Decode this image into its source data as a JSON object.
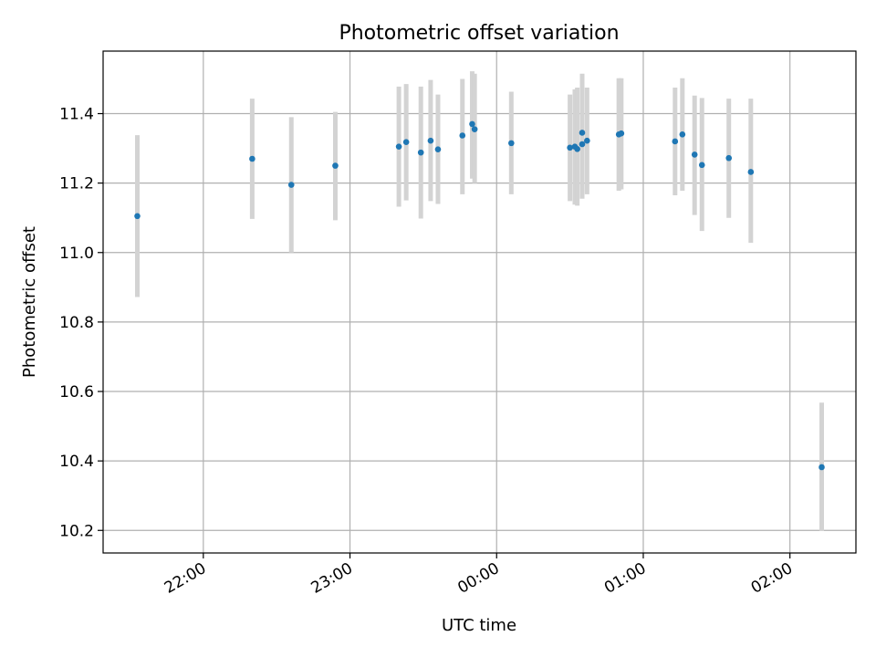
{
  "chart_data": {
    "type": "scatter",
    "title": "Photometric offset variation",
    "xlabel": "UTC time",
    "ylabel": "Photometric offset",
    "x_is_time": true,
    "xlim": [
      "21:19",
      "02:27"
    ],
    "ylim": [
      10.135,
      11.58
    ],
    "xticks": [
      "22:00",
      "23:00",
      "00:00",
      "01:00",
      "02:00"
    ],
    "yticks": [
      "10.2",
      "10.4",
      "10.6",
      "10.8",
      "11.0",
      "11.2",
      "11.4"
    ],
    "grid": true,
    "marker_color": "#1f77b4",
    "errorbar_color": "#d3d3d3",
    "points": [
      {
        "x": "21:33",
        "y": 11.105,
        "ylow": 10.872,
        "yhigh": 11.338
      },
      {
        "x": "22:20",
        "y": 11.27,
        "ylow": 11.097,
        "yhigh": 11.443
      },
      {
        "x": "22:36",
        "y": 11.195,
        "ylow": 11.0,
        "yhigh": 11.39
      },
      {
        "x": "22:54",
        "y": 11.25,
        "ylow": 11.093,
        "yhigh": 11.405
      },
      {
        "x": "23:20",
        "y": 11.305,
        "ylow": 11.132,
        "yhigh": 11.478
      },
      {
        "x": "23:23",
        "y": 11.318,
        "ylow": 11.15,
        "yhigh": 11.485
      },
      {
        "x": "23:29",
        "y": 11.288,
        "ylow": 11.098,
        "yhigh": 11.478
      },
      {
        "x": "23:33",
        "y": 11.322,
        "ylow": 11.148,
        "yhigh": 11.497
      },
      {
        "x": "23:36",
        "y": 11.297,
        "ylow": 11.14,
        "yhigh": 11.455
      },
      {
        "x": "23:46",
        "y": 11.337,
        "ylow": 11.168,
        "yhigh": 11.5
      },
      {
        "x": "23:50",
        "y": 11.37,
        "ylow": 11.213,
        "yhigh": 11.522
      },
      {
        "x": "23:51",
        "y": 11.355,
        "ylow": 11.2,
        "yhigh": 11.515
      },
      {
        "x": "00:06",
        "y": 11.315,
        "ylow": 11.168,
        "yhigh": 11.463
      },
      {
        "x": "00:30",
        "y": 11.302,
        "ylow": 11.148,
        "yhigh": 11.455
      },
      {
        "x": "00:32",
        "y": 11.305,
        "ylow": 11.138,
        "yhigh": 11.47
      },
      {
        "x": "00:33",
        "y": 11.298,
        "ylow": 11.135,
        "yhigh": 11.475
      },
      {
        "x": "00:35",
        "y": 11.345,
        "ylow": 11.175,
        "yhigh": 11.515
      },
      {
        "x": "00:35",
        "y": 11.312,
        "ylow": 11.155,
        "yhigh": 11.468
      },
      {
        "x": "00:37",
        "y": 11.322,
        "ylow": 11.168,
        "yhigh": 11.475
      },
      {
        "x": "00:50",
        "y": 11.34,
        "ylow": 11.178,
        "yhigh": 11.502
      },
      {
        "x": "00:51",
        "y": 11.343,
        "ylow": 11.182,
        "yhigh": 11.502
      },
      {
        "x": "01:13",
        "y": 11.32,
        "ylow": 11.165,
        "yhigh": 11.475
      },
      {
        "x": "01:16",
        "y": 11.34,
        "ylow": 11.178,
        "yhigh": 11.502
      },
      {
        "x": "01:21",
        "y": 11.282,
        "ylow": 11.108,
        "yhigh": 11.452
      },
      {
        "x": "01:24",
        "y": 11.252,
        "ylow": 11.062,
        "yhigh": 11.445
      },
      {
        "x": "01:35",
        "y": 11.272,
        "ylow": 11.1,
        "yhigh": 11.443
      },
      {
        "x": "01:44",
        "y": 11.232,
        "ylow": 11.028,
        "yhigh": 11.443
      },
      {
        "x": "02:13",
        "y": 10.382,
        "ylow": 10.198,
        "yhigh": 10.568
      }
    ]
  }
}
